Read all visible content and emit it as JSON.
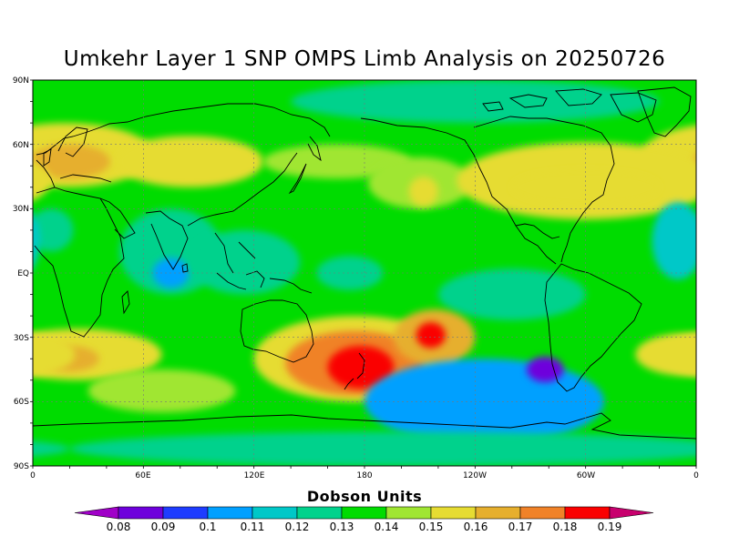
{
  "title": "Umkehr Layer 1 SNP OMPS Limb Analysis on 20250726",
  "colorbar": {
    "title": "Dobson Units",
    "ticks": [
      "0.08",
      "0.09",
      "0.1",
      "0.11",
      "0.12",
      "0.13",
      "0.14",
      "0.15",
      "0.16",
      "0.17",
      "0.18",
      "0.19"
    ],
    "colors": [
      "#a000c8",
      "#6e00dc",
      "#1e3cff",
      "#00a0ff",
      "#00c8c8",
      "#00d28c",
      "#00dc00",
      "#a0e632",
      "#e6dc32",
      "#e6af2d",
      "#f08228",
      "#fa0000",
      "#c8006e"
    ]
  },
  "axes": {
    "lat_labels": [
      "90N",
      "60N",
      "30N",
      "EQ",
      "30S",
      "60S",
      "90S"
    ],
    "lon_labels": [
      "0",
      "60E",
      "120E",
      "180",
      "120W",
      "60W",
      "0"
    ]
  },
  "chart_data": {
    "type": "heatmap",
    "title": "Umkehr Layer 1 SNP OMPS Limb Analysis on 20250726",
    "units": "Dobson Units",
    "x_range_lon_east": [
      0,
      360
    ],
    "y_range_lat": [
      -90,
      90
    ],
    "color_levels": [
      0.08,
      0.09,
      0.1,
      0.11,
      0.12,
      0.13,
      0.14,
      0.15,
      0.16,
      0.17,
      0.18,
      0.19
    ],
    "background_level": 0.135,
    "features": [
      {
        "lon": 18,
        "lat": 55,
        "rx": 48,
        "ry": 15,
        "value": 0.155
      },
      {
        "lon": 20,
        "lat": 52,
        "rx": 22,
        "ry": 8,
        "value": 0.165
      },
      {
        "lon": 85,
        "lat": 52,
        "rx": 40,
        "ry": 12,
        "value": 0.152
      },
      {
        "lon": 165,
        "lat": 52,
        "rx": 40,
        "ry": 8,
        "value": 0.145
      },
      {
        "lon": 210,
        "lat": 42,
        "rx": 28,
        "ry": 12,
        "value": 0.148
      },
      {
        "lon": 212,
        "lat": 38,
        "rx": 8,
        "ry": 7,
        "value": 0.155
      },
      {
        "lon": 300,
        "lat": 43,
        "rx": 70,
        "ry": 18,
        "value": 0.15
      },
      {
        "lon": 300,
        "lat": 40,
        "rx": 40,
        "ry": 8,
        "value": 0.155
      },
      {
        "lon": 240,
        "lat": 80,
        "rx": 100,
        "ry": 10,
        "value": 0.127
      },
      {
        "lon": 10,
        "lat": 20,
        "rx": 12,
        "ry": 10,
        "value": 0.12
      },
      {
        "lon": 75,
        "lat": 10,
        "rx": 28,
        "ry": 20,
        "value": 0.12
      },
      {
        "lon": 75,
        "lat": 0,
        "rx": 10,
        "ry": 7,
        "value": 0.108
      },
      {
        "lon": 115,
        "lat": 5,
        "rx": 30,
        "ry": 15,
        "value": 0.125
      },
      {
        "lon": 172,
        "lat": 0,
        "rx": 18,
        "ry": 8,
        "value": 0.125
      },
      {
        "lon": 260,
        "lat": -10,
        "rx": 40,
        "ry": 12,
        "value": 0.128
      },
      {
        "lon": 350,
        "lat": 15,
        "rx": 14,
        "ry": 18,
        "value": 0.115
      },
      {
        "lon": 25,
        "lat": -38,
        "rx": 45,
        "ry": 12,
        "value": 0.15
      },
      {
        "lon": 20,
        "lat": -40,
        "rx": 16,
        "ry": 6,
        "value": 0.16
      },
      {
        "lon": 355,
        "lat": -38,
        "rx": 28,
        "ry": 10,
        "value": 0.155
      },
      {
        "lon": 70,
        "lat": -55,
        "rx": 40,
        "ry": 10,
        "value": 0.145
      },
      {
        "lon": 175,
        "lat": -40,
        "rx": 55,
        "ry": 20,
        "value": 0.155
      },
      {
        "lon": 175,
        "lat": -42,
        "rx": 38,
        "ry": 15,
        "value": 0.17
      },
      {
        "lon": 178,
        "lat": -44,
        "rx": 18,
        "ry": 10,
        "value": 0.185
      },
      {
        "lon": 218,
        "lat": -30,
        "rx": 22,
        "ry": 13,
        "value": 0.16
      },
      {
        "lon": 216,
        "lat": -29,
        "rx": 8,
        "ry": 6,
        "value": 0.185
      },
      {
        "lon": 245,
        "lat": -60,
        "rx": 65,
        "ry": 20,
        "value": 0.1
      },
      {
        "lon": 278,
        "lat": -45,
        "rx": 10,
        "ry": 6,
        "value": 0.085
      },
      {
        "lon": 200,
        "lat": -82,
        "rx": 180,
        "ry": 8,
        "value": 0.128
      }
    ]
  }
}
